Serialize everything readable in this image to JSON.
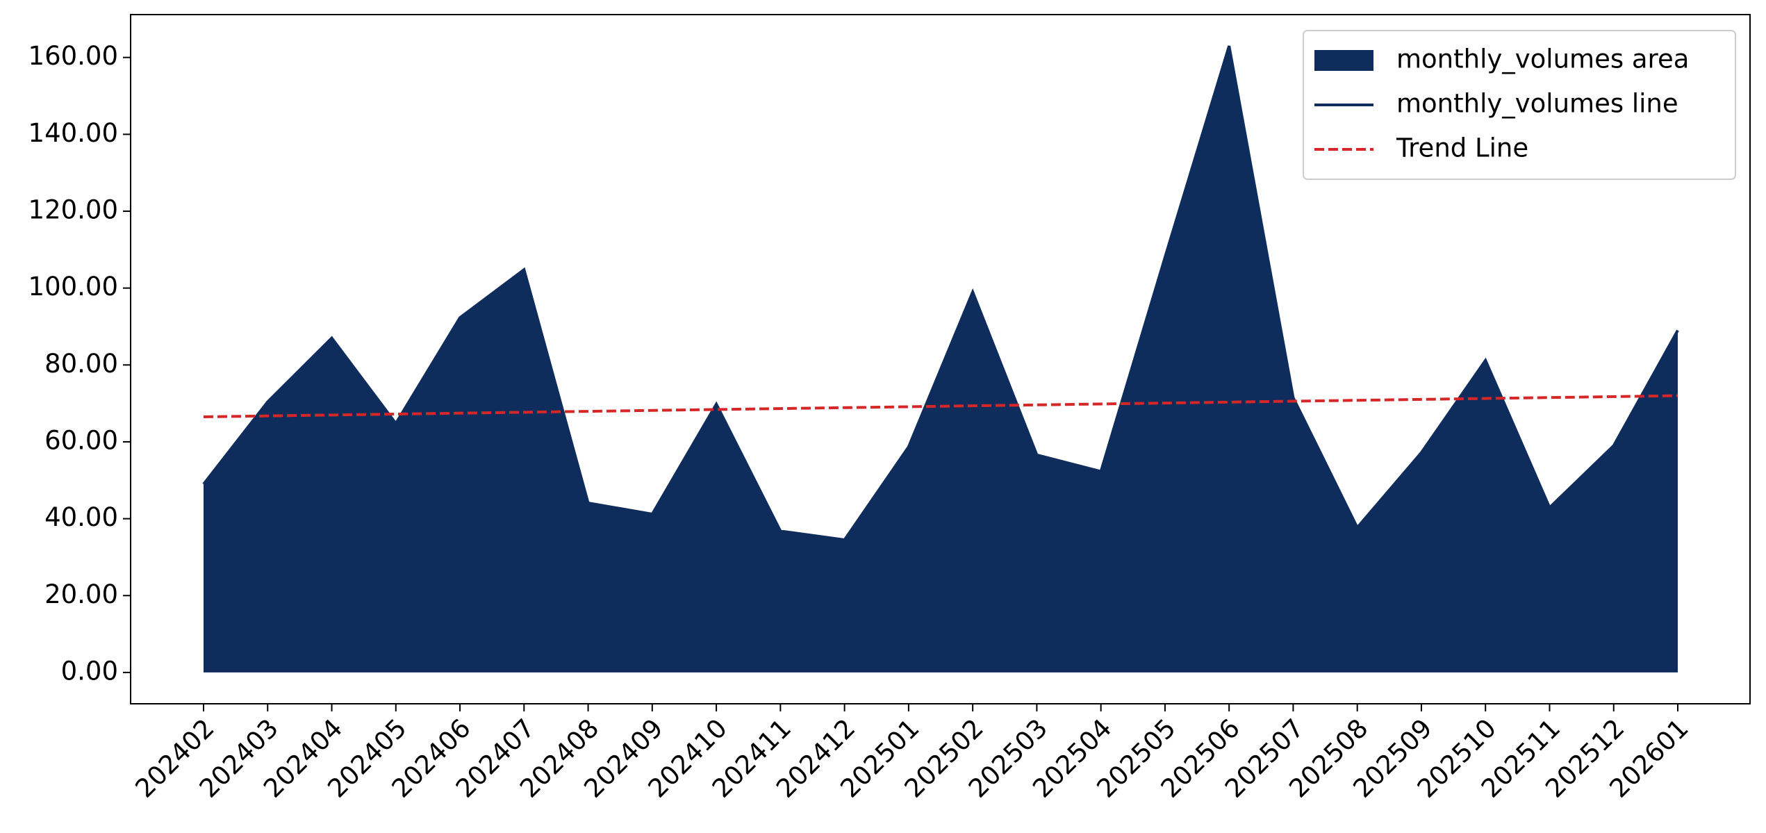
{
  "chart_data": {
    "type": "area",
    "categories": [
      "202402",
      "202403",
      "202404",
      "202405",
      "202406",
      "202407",
      "202408",
      "202409",
      "202410",
      "202411",
      "202412",
      "202501",
      "202502",
      "202503",
      "202504",
      "202505",
      "202506",
      "202507",
      "202508",
      "202509",
      "202510",
      "202511",
      "202512",
      "202601"
    ],
    "series": [
      {
        "name": "monthly_volumes area",
        "type": "area",
        "color": "#0f2d5c",
        "values": [
          49,
          70.4,
          87,
          64.8,
          92.3,
          104.8,
          44.1,
          41.2,
          69.8,
          36.8,
          34.5,
          58.7,
          99,
          56.6,
          52.3,
          108,
          163,
          71.5,
          37.7,
          57.2,
          81.2,
          42.9,
          59,
          89
        ]
      },
      {
        "name": "monthly_volumes line",
        "type": "line",
        "color": "#0f2d5c",
        "values": [
          49,
          70.4,
          87,
          64.8,
          92.3,
          104.8,
          44.1,
          41.2,
          69.8,
          36.8,
          34.5,
          58.7,
          99,
          56.6,
          52.3,
          108,
          163,
          71.5,
          37.7,
          57.2,
          81.2,
          42.9,
          59,
          89
        ]
      },
      {
        "name": "Trend Line",
        "type": "line",
        "dashed": true,
        "color": "#d62728",
        "values": [
          66.5,
          66.74,
          66.98,
          67.22,
          67.46,
          67.7,
          67.93,
          68.17,
          68.41,
          68.65,
          68.89,
          69.13,
          69.37,
          69.61,
          69.85,
          70.09,
          70.33,
          70.57,
          70.8,
          71.04,
          71.28,
          71.52,
          71.76,
          72
        ]
      }
    ],
    "ylim": [
      -8.15,
      171.15
    ],
    "yticks": [
      {
        "value": 0,
        "label": "0.00"
      },
      {
        "value": 20,
        "label": "20.00"
      },
      {
        "value": 40,
        "label": "40.00"
      },
      {
        "value": 60,
        "label": "60.00"
      },
      {
        "value": 80,
        "label": "80.00"
      },
      {
        "value": 100,
        "label": "100.00"
      },
      {
        "value": 120,
        "label": "120.00"
      },
      {
        "value": 140,
        "label": "140.00"
      },
      {
        "value": 160,
        "label": "160.00"
      }
    ],
    "grid": false,
    "legend": "upper right"
  }
}
